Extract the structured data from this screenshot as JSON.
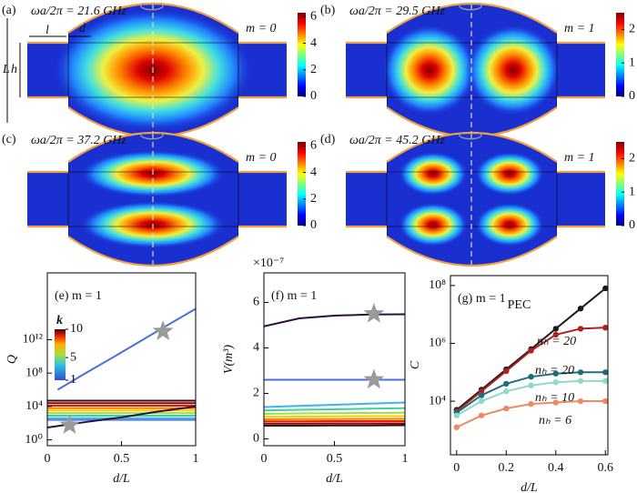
{
  "chart_data": [
    {
      "type": "field",
      "title": "(a)",
      "annotation": "ωa/2π = 21.6 GHz",
      "mode": "m = 0",
      "clim": [
        0,
        6.3
      ],
      "cticks": [
        0,
        2,
        4,
        6
      ],
      "dimension_labels": [
        "l",
        "d",
        "L",
        "h"
      ]
    },
    {
      "type": "field",
      "title": "(b)",
      "annotation": "ωa/2π = 29.5 GHz",
      "mode": "m = 1",
      "clim": [
        0,
        2.5
      ],
      "cticks": [
        0,
        1,
        2
      ]
    },
    {
      "type": "field",
      "title": "(c)",
      "annotation": "ωa/2π = 37.2 GHz",
      "mode": "m = 0",
      "clim": [
        0,
        6.3
      ],
      "cticks": [
        0,
        2,
        4,
        6
      ]
    },
    {
      "type": "field",
      "title": "(d)",
      "annotation": "ωa/2π = 45.2 GHz",
      "mode": "m = 1",
      "clim": [
        0,
        2.5
      ],
      "cticks": [
        0,
        1,
        2
      ]
    },
    {
      "type": "line",
      "title": "(e) m = 1",
      "x_label": "d/L",
      "y_label": "Q",
      "log_y": true,
      "xlim": [
        0,
        1
      ],
      "xticks": [
        0,
        0.5,
        1
      ],
      "ylim": [
        0.2,
        1e+20
      ],
      "yticks": [
        {
          "value": 1,
          "label": "10⁰"
        },
        {
          "value": 10000,
          "label": "10⁴"
        },
        {
          "value": 100000000,
          "label": "10⁸"
        },
        {
          "value": 1000000000000,
          "label": "10¹²"
        }
      ],
      "x": [
        0,
        0.25,
        0.5,
        0.75,
        1
      ],
      "series": [
        {
          "color": "#3a0a12",
          "values": [
            50000,
            50000,
            50000,
            50000,
            50000
          ]
        },
        {
          "color": "#8b0000",
          "values": [
            25000,
            25000,
            25000,
            25000,
            25000
          ]
        },
        {
          "color": "#e02000",
          "values": [
            12500,
            12500,
            12500,
            12500,
            12500
          ]
        },
        {
          "color": "#ff8000",
          "values": [
            6300,
            6300,
            6300,
            6300,
            6300
          ]
        },
        {
          "color": "#f0d000",
          "values": [
            3200,
            3200,
            3200,
            3200,
            3200
          ]
        },
        {
          "color": "#a0e040",
          "values": [
            1600,
            1600,
            1600,
            1600,
            1600
          ]
        },
        {
          "color": "#40d0a0",
          "values": [
            800,
            800,
            800,
            800,
            800
          ]
        },
        {
          "color": "#40b0f0",
          "values": [
            400,
            400,
            400,
            400,
            400
          ]
        },
        {
          "color": "#5080e0",
          "values": [
            250,
            250,
            250,
            250,
            250
          ]
        },
        {
          "color": "#2a1040",
          "values": [
            30,
            130,
            500,
            2500,
            10000
          ]
        },
        {
          "color": "#4a70d8",
          "x": [
            0.07,
            0.25,
            0.5,
            0.75,
            1
          ],
          "values": [
            1000000,
            80000000,
            30000000000,
            13000000000000,
            5000000000000000
          ]
        }
      ],
      "markers": {
        "color": "#9a9a9a",
        "x": [
          0.15,
          0.78
        ],
        "values": [
          60,
          10000000000000
        ]
      },
      "colorbar": {
        "label": "k",
        "clim": [
          1,
          10
        ],
        "cticks": [
          1,
          5,
          10
        ]
      }
    },
    {
      "type": "line",
      "title": "(f) m = 1",
      "x_label": "d/L",
      "y_label": "V(m³)",
      "y_offset_label": "×10⁻⁷",
      "xlim": [
        0,
        1
      ],
      "xticks": [
        0,
        0.5,
        1
      ],
      "ylim": [
        -0.3,
        7.3
      ],
      "yticks": [
        0,
        2,
        4,
        6
      ],
      "x": [
        0,
        0.25,
        0.5,
        0.75,
        1
      ],
      "series": [
        {
          "color": "#2a1040",
          "values": [
            4.95,
            5.3,
            5.42,
            5.47,
            5.48
          ]
        },
        {
          "color": "#4a70d8",
          "values": [
            2.6,
            2.6,
            2.6,
            2.6,
            2.6
          ]
        },
        {
          "color": "#40b0f0",
          "values": [
            1.4,
            1.45,
            1.5,
            1.55,
            1.6
          ]
        },
        {
          "color": "#40d0a0",
          "values": [
            1.25,
            1.28,
            1.3,
            1.33,
            1.35
          ]
        },
        {
          "color": "#a0e040",
          "values": [
            1.1,
            1.12,
            1.13,
            1.14,
            1.15
          ]
        },
        {
          "color": "#f0d000",
          "values": [
            0.97,
            0.98,
            0.99,
            1.0,
            1.0
          ]
        },
        {
          "color": "#ff8000",
          "values": [
            0.86,
            0.87,
            0.87,
            0.88,
            0.88
          ]
        },
        {
          "color": "#e02000",
          "values": [
            0.77,
            0.77,
            0.78,
            0.78,
            0.78
          ]
        },
        {
          "color": "#8b0000",
          "values": [
            0.67,
            0.67,
            0.68,
            0.68,
            0.68
          ]
        },
        {
          "color": "#3a0a12",
          "values": [
            0.58,
            0.58,
            0.59,
            0.59,
            0.6
          ]
        }
      ],
      "markers": {
        "color": "#9a9a9a",
        "x": [
          0.78,
          0.78
        ],
        "values": [
          5.5,
          2.6
        ]
      }
    },
    {
      "type": "line",
      "title": "(g) m = 1",
      "title_sub": "PEC",
      "x_label": "d/L",
      "y_label": "C",
      "log_y": true,
      "point_markers": true,
      "xlim": [
        -0.025,
        0.61
      ],
      "xticks": [
        0,
        0.2,
        0.4,
        0.6
      ],
      "ylim": [
        140,
        220000000
      ],
      "yticks": [
        {
          "value": 10000,
          "label": "10⁴"
        },
        {
          "value": 1000000,
          "label": "10⁶"
        },
        {
          "value": 100000000,
          "label": "10⁸"
        }
      ],
      "x": [
        0,
        0.1,
        0.2,
        0.3,
        0.4,
        0.5,
        0.6
      ],
      "series": [
        {
          "color": "#1a1a1a",
          "values": [
            5000,
            25000,
            126000,
            630000,
            3200000,
            16000000,
            80000000
          ]
        },
        {
          "name": "nₕ = 20",
          "color": "#b02020",
          "values": [
            4500,
            22000,
            110000,
            560000,
            2000000,
            3200000,
            3500000
          ]
        },
        {
          "name": "nₕ = 20",
          "color": "#1e6e7a",
          "values": [
            4000,
            16000,
            40000,
            70000,
            90000,
            100000,
            100000
          ]
        },
        {
          "name": "nₕ = 10",
          "color": "#90d8c8",
          "values": [
            3200,
            10000,
            22000,
            35000,
            45000,
            50000,
            50000
          ]
        },
        {
          "name": "nₕ = 6",
          "color": "#f08860",
          "values": [
            1250,
            3200,
            5600,
            8000,
            9000,
            10000,
            10000
          ]
        }
      ]
    }
  ]
}
